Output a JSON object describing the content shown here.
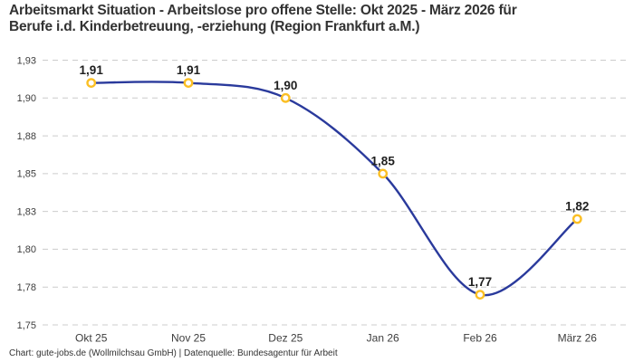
{
  "chart_data": {
    "type": "line",
    "title": "Arbeitsmarkt Situation - Arbeitslose pro offene Stelle: Okt 2025 - März 2026 für Berufe i.d. Kinderbetreuung, -erziehung (Region Frankfurt a.M.)",
    "title_lines": [
      "Arbeitsmarkt Situation - Arbeitslose pro offene Stelle: Okt 2025 - März 2026 für",
      "Berufe i.d. Kinderbetreuung, -erziehung (Region Frankfurt a.M.)"
    ],
    "categories": [
      "Okt 25",
      "Nov 25",
      "Dez 25",
      "Jan 26",
      "Feb 26",
      "März 26"
    ],
    "values": [
      1.91,
      1.91,
      1.9,
      1.85,
      1.77,
      1.82
    ],
    "point_labels": [
      "1,91",
      "1,91",
      "1,90",
      "1,85",
      "1,77",
      "1,82"
    ],
    "ylim": [
      1.75,
      1.925
    ],
    "y_ticks": [
      {
        "value": 1.925,
        "label": "1,93"
      },
      {
        "value": 1.9,
        "label": "1,90"
      },
      {
        "value": 1.875,
        "label": "1,88"
      },
      {
        "value": 1.85,
        "label": "1,85"
      },
      {
        "value": 1.825,
        "label": "1,83"
      },
      {
        "value": 1.8,
        "label": "1,80"
      },
      {
        "value": 1.775,
        "label": "1,78"
      },
      {
        "value": 1.75,
        "label": "1,75"
      }
    ],
    "grid": "horizontal-dashed",
    "legend": "none",
    "colors": {
      "line": "#2a3a9c",
      "marker_ring": "#fbbf24",
      "marker_fill": "#ffffff",
      "grid": "#cccccc",
      "title": "#333333",
      "tick_label": "#3d3d3d",
      "point_label": "#1f1f1f"
    }
  },
  "footer": {
    "credit": "Chart: gute-jobs.de (Wollmilchsau GmbH) | Datenquelle: Bundesagentur für Arbeit"
  }
}
